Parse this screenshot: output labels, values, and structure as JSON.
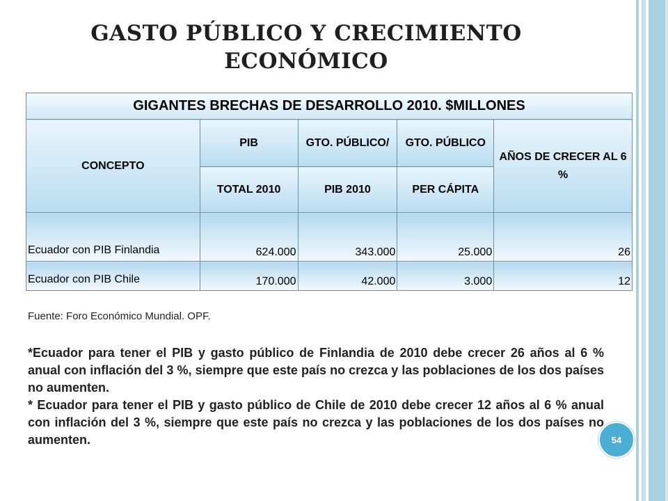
{
  "slide": {
    "title_line1": "GASTO PÚBLICO Y CRECIMIENTO",
    "title_line2": "ECONÓMICO",
    "page_number": "54"
  },
  "table": {
    "caption": "GIGANTES BRECHAS DE DESARROLLO 2010. $MILLONES",
    "headers": {
      "concepto": "CONCEPTO",
      "pib_top": "PIB",
      "pib_bottom": "TOTAL 2010",
      "gto_pib_top": "GTO. PÚBLICO/",
      "gto_pib_bottom": "PIB 2010",
      "gto_percap_top": "GTO. PÚBLICO",
      "gto_percap_bottom": "PER CÁPITA",
      "anos": "AÑOS DE CRECER AL 6 %"
    },
    "rows": [
      {
        "concepto": "Ecuador con PIB Finlandia",
        "pib": "624.000",
        "gto_pib": "343.000",
        "gto_percap": "25.000",
        "anos": "26"
      },
      {
        "concepto": "Ecuador con PIB Chile",
        "pib": "170.000",
        "gto_pib": "42.000",
        "gto_percap": "3.000",
        "anos": "12"
      }
    ]
  },
  "source": "Fuente: Foro Económico Mundial. OPF.",
  "notes": [
    "*Ecuador para tener el PIB y gasto público de Finlandia de 2010 debe crecer  26 años al 6 % anual con inflación del 3 %, siempre que este país no crezca y las poblaciones de los dos países no aumenten.",
    "* Ecuador para tener el PIB y gasto público de Chile de 2010 debe crecer 12 años al 6 % anual con inflación del 3 %, siempre que este país no crezca y las poblaciones de los dos países no aumenten."
  ],
  "colors": {
    "accent": "#4aaed5",
    "stripe": "#a9cfe0"
  }
}
